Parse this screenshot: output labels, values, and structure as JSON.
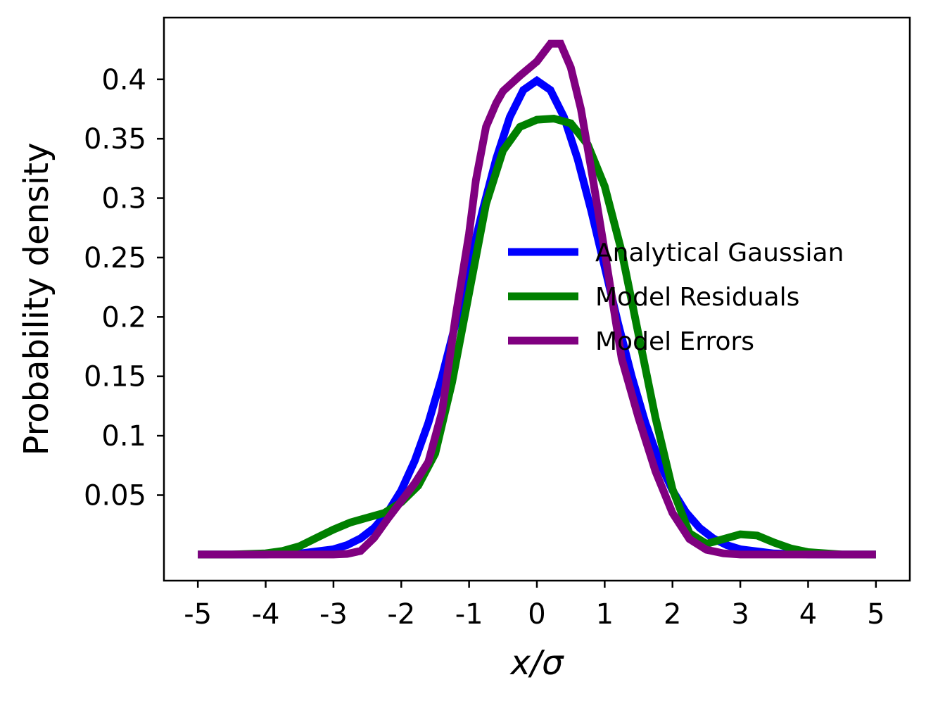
{
  "chart_data": {
    "type": "line",
    "xlabel": "x/σ",
    "ylabel": "Probability density",
    "xlim": [
      -5.5,
      5.5
    ],
    "ylim": [
      -0.022,
      0.452
    ],
    "x_ticks": [
      -5,
      -4,
      -3,
      -2,
      -1,
      0,
      1,
      2,
      3,
      4,
      5
    ],
    "x_tick_labels": [
      "-5",
      "-4",
      "-3",
      "-2",
      "-1",
      "0",
      "1",
      "2",
      "3",
      "4",
      "5"
    ],
    "y_ticks": [
      0.05,
      0.1,
      0.15,
      0.2,
      0.25,
      0.3,
      0.35,
      0.4
    ],
    "y_tick_labels": [
      "0.05",
      "0.1",
      "0.15",
      "0.2",
      "0.25",
      "0.3",
      "0.35",
      "0.4"
    ],
    "grid": false,
    "legend_position": "center-right",
    "series": [
      {
        "name": "Analytical Gaussian",
        "color": "#0000ff",
        "x": [
          -5,
          -4.5,
          -4,
          -3.5,
          -3,
          -2.8,
          -2.6,
          -2.4,
          -2.2,
          -2,
          -1.8,
          -1.6,
          -1.4,
          -1.2,
          -1,
          -0.8,
          -0.6,
          -0.4,
          -0.2,
          0,
          0.2,
          0.4,
          0.6,
          0.8,
          1,
          1.2,
          1.4,
          1.6,
          1.8,
          2,
          2.2,
          2.4,
          2.6,
          2.8,
          3,
          3.5,
          4,
          4.5,
          5
        ],
        "y": [
          0.0,
          0.0,
          0.0001,
          0.0009,
          0.0044,
          0.0079,
          0.0136,
          0.0224,
          0.0355,
          0.054,
          0.079,
          0.1109,
          0.1497,
          0.1942,
          0.242,
          0.2897,
          0.3332,
          0.3683,
          0.391,
          0.3989,
          0.391,
          0.3683,
          0.3332,
          0.2897,
          0.242,
          0.1942,
          0.1497,
          0.1109,
          0.079,
          0.054,
          0.0355,
          0.0224,
          0.0136,
          0.0079,
          0.0044,
          0.0009,
          0.0001,
          0.0,
          0.0
        ]
      },
      {
        "name": "Model Residuals",
        "color": "#008000",
        "x": [
          -5,
          -4.5,
          -4,
          -3.75,
          -3.5,
          -3.25,
          -3,
          -2.75,
          -2.5,
          -2.25,
          -2,
          -1.75,
          -1.5,
          -1.25,
          -1,
          -0.75,
          -0.5,
          -0.25,
          0,
          0.25,
          0.5,
          0.75,
          1,
          1.25,
          1.5,
          1.75,
          2,
          2.25,
          2.5,
          2.75,
          3,
          3.25,
          3.5,
          3.75,
          4,
          4.5,
          5
        ],
        "y": [
          0.0,
          0.0,
          0.001,
          0.003,
          0.007,
          0.014,
          0.021,
          0.027,
          0.031,
          0.035,
          0.044,
          0.058,
          0.085,
          0.145,
          0.22,
          0.295,
          0.34,
          0.36,
          0.366,
          0.367,
          0.363,
          0.345,
          0.31,
          0.255,
          0.185,
          0.115,
          0.055,
          0.018,
          0.009,
          0.013,
          0.017,
          0.016,
          0.01,
          0.005,
          0.002,
          0.0,
          0.0
        ]
      },
      {
        "name": "Model Errors",
        "color": "#800080",
        "x": [
          -5,
          -4.5,
          -4,
          -3.5,
          -3,
          -2.8,
          -2.6,
          -2.4,
          -2.2,
          -2,
          -1.8,
          -1.6,
          -1.4,
          -1.2,
          -1,
          -0.9,
          -0.75,
          -0.6,
          -0.5,
          -0.25,
          0,
          0.2,
          0.35,
          0.5,
          0.65,
          0.8,
          1,
          1.25,
          1.5,
          1.75,
          2,
          2.25,
          2.5,
          2.75,
          3,
          3.5,
          4,
          4.5,
          5
        ],
        "y": [
          0.0,
          0.0,
          0.0,
          0.0,
          0.0,
          0.0005,
          0.003,
          0.014,
          0.03,
          0.045,
          0.06,
          0.078,
          0.12,
          0.2,
          0.27,
          0.315,
          0.36,
          0.38,
          0.39,
          0.403,
          0.415,
          0.43,
          0.43,
          0.41,
          0.375,
          0.325,
          0.255,
          0.165,
          0.115,
          0.07,
          0.035,
          0.013,
          0.004,
          0.001,
          0.0,
          0.0,
          0.0,
          0.0,
          0.0
        ]
      }
    ]
  }
}
